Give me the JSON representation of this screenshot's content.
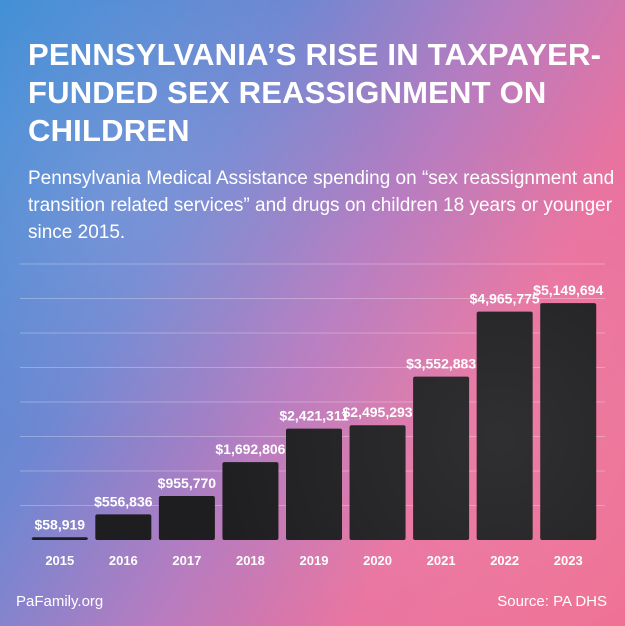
{
  "title": "PENNSYLVANIA’S RISE IN TAXPAYER-FUNDED SEX REASSIGNMENT ON CHILDREN",
  "subtitle": "Pennsylvania Medical Assistance spending on “sex reassignment and transition related services” and drugs on children 18 years or younger since 2015.",
  "footer": {
    "left": "PaFamily.org",
    "right": "Source: PA DHS"
  },
  "colors": {
    "bar": "#1e1d1f",
    "text": "#ffffff",
    "gridline": "#ffffff"
  },
  "chart_data": {
    "type": "bar",
    "categories": [
      "2015",
      "2016",
      "2017",
      "2018",
      "2019",
      "2020",
      "2021",
      "2022",
      "2023"
    ],
    "values": [
      58919,
      556836,
      955770,
      1692806,
      2421311,
      2495293,
      3552883,
      4965775,
      5149694
    ],
    "value_labels": [
      "$58,919",
      "$556,836",
      "$955,770",
      "$1,692,806",
      "$2,421,311",
      "$2,495,293",
      "$3,552,883",
      "$4,965,775",
      "$5,149,694"
    ],
    "ylim": [
      0,
      6000000
    ],
    "grid": true
  }
}
